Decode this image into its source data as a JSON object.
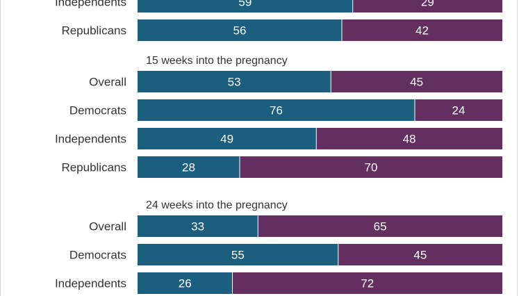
{
  "colors": {
    "first": "#1b5e7e",
    "second": "#632f61"
  },
  "chart_data": {
    "type": "bar",
    "orientation": "horizontal",
    "stacked": true,
    "grid": false,
    "legend": "none",
    "xlim": [
      0,
      100
    ],
    "groups": [
      {
        "title": "",
        "rows": [
          {
            "label": "Independents",
            "values": [
              59,
              29
            ],
            "clipped": true
          },
          {
            "label": "Republicans",
            "values": [
              56,
              42
            ]
          }
        ]
      },
      {
        "title": "15 weeks into the pregnancy",
        "rows": [
          {
            "label": "Overall",
            "values": [
              53,
              45
            ]
          },
          {
            "label": "Democrats",
            "values": [
              76,
              24
            ]
          },
          {
            "label": "Independents",
            "values": [
              49,
              48
            ]
          },
          {
            "label": "Republicans",
            "values": [
              28,
              70
            ]
          }
        ]
      },
      {
        "title": "24 weeks into the pregnancy",
        "rows": [
          {
            "label": "Overall",
            "values": [
              33,
              65
            ]
          },
          {
            "label": "Democrats",
            "values": [
              55,
              45
            ]
          },
          {
            "label": "Independents",
            "values": [
              26,
              72
            ]
          }
        ]
      }
    ]
  }
}
